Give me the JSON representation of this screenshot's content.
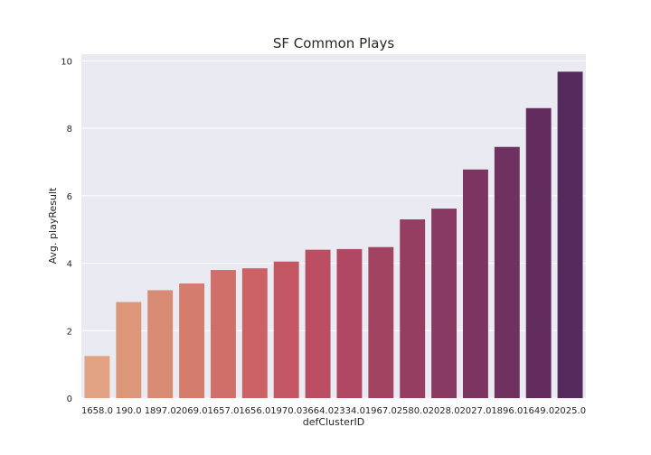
{
  "chart_data": {
    "type": "bar",
    "title": "SF Common Plays",
    "xlabel": "defClusterID",
    "ylabel": "Avg. playResult",
    "categories": [
      "1658.0",
      "190.0",
      "1897.0",
      "2069.0",
      "1657.0",
      "1656.0",
      "1970.0",
      "3664.0",
      "2334.0",
      "1967.0",
      "2580.0",
      "2028.0",
      "2027.0",
      "1896.0",
      "1649.0",
      "2025.0"
    ],
    "values": [
      1.25,
      2.85,
      3.2,
      3.4,
      3.8,
      3.85,
      4.05,
      4.4,
      4.42,
      4.48,
      5.3,
      5.62,
      6.78,
      7.45,
      8.6,
      9.68
    ],
    "colors": [
      "#e1a383",
      "#dc977a",
      "#d88b73",
      "#d47d6d",
      "#d06f69",
      "#cb6266",
      "#c45764",
      "#bb4e63",
      "#b04863",
      "#a34362",
      "#963e62",
      "#893a62",
      "#7c3561",
      "#6f3160",
      "#622d5e",
      "#552a5c"
    ],
    "yticks": [
      "0",
      "2",
      "4",
      "6",
      "8",
      "10"
    ],
    "ylim": [
      0,
      10.2
    ],
    "grid": true,
    "background": "#eaeaf2"
  }
}
